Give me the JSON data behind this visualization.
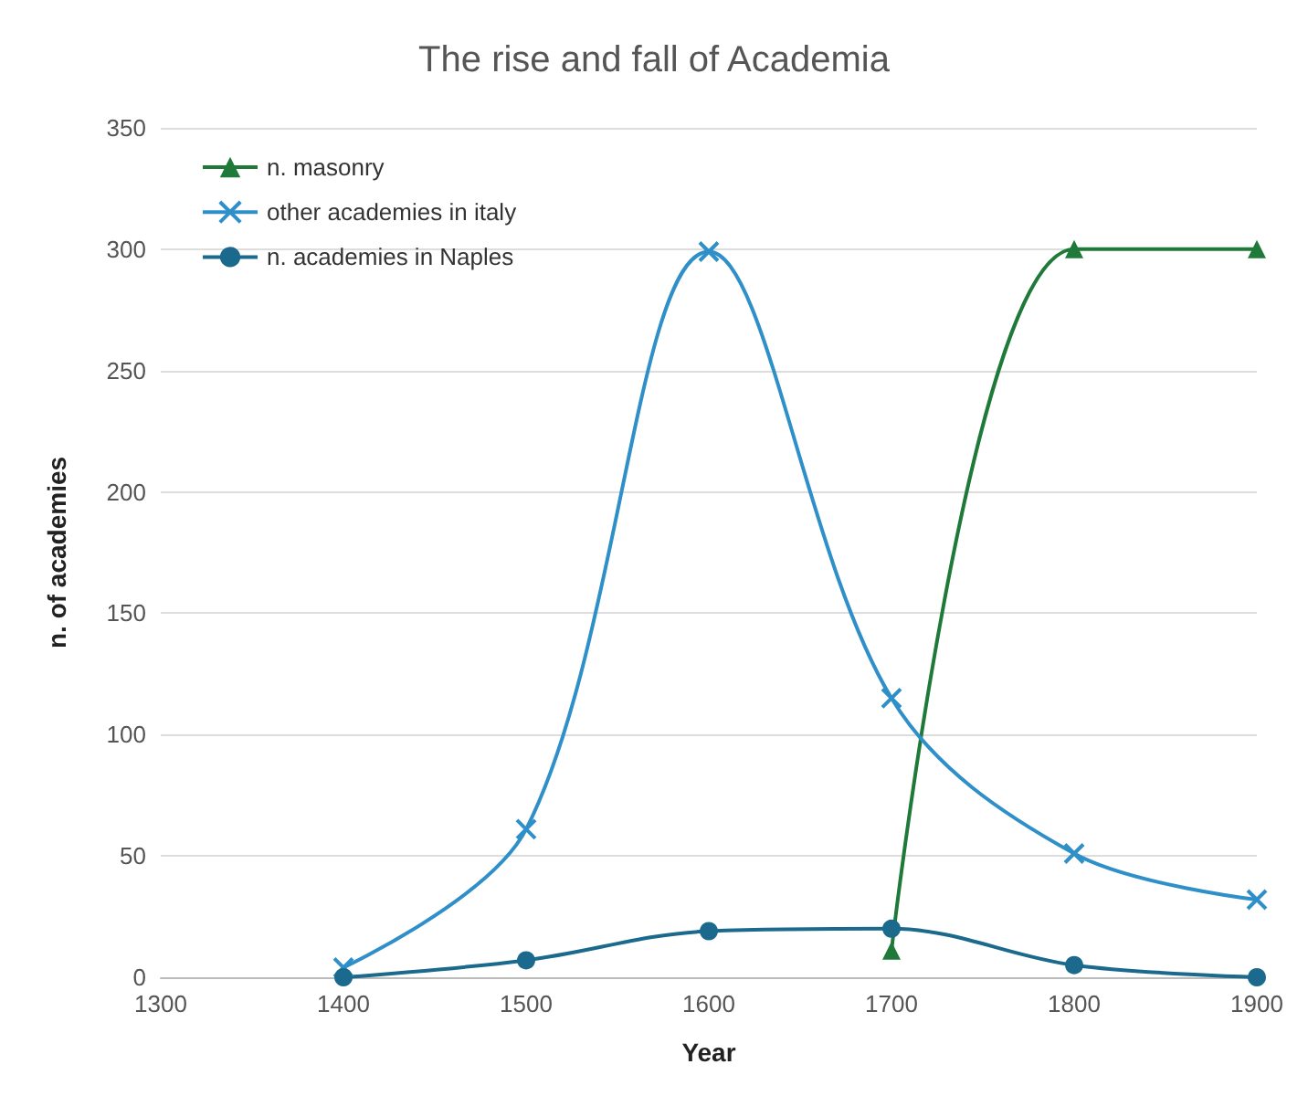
{
  "chart_data": {
    "type": "line",
    "title": "The rise and fall of Academia",
    "xlabel": "Year",
    "ylabel": "n. of academies",
    "x": [
      1400,
      1500,
      1600,
      1700,
      1800,
      1900
    ],
    "series": [
      {
        "name": "n. masonry",
        "color": "#1f7a3a",
        "marker": "triangle",
        "x": [
          1700,
          1800,
          1900
        ],
        "values": [
          11,
          300,
          300
        ]
      },
      {
        "name": "other academies in italy",
        "color": "#2f8fc8",
        "marker": "cross",
        "values": [
          4,
          61,
          299,
          115,
          51,
          32
        ]
      },
      {
        "name": "n. academies in Naples",
        "color": "#1b6a8e",
        "marker": "circle",
        "values": [
          0,
          7,
          19,
          20,
          5,
          0
        ]
      }
    ],
    "xlim": [
      1300,
      1900
    ],
    "xticks": [
      1300,
      1400,
      1500,
      1600,
      1700,
      1800,
      1900
    ],
    "ylim": [
      0,
      350
    ],
    "yticks": [
      0,
      50,
      100,
      150,
      200,
      250,
      300,
      350
    ],
    "grid": "y",
    "legend": "top left",
    "line_style": "solid"
  }
}
